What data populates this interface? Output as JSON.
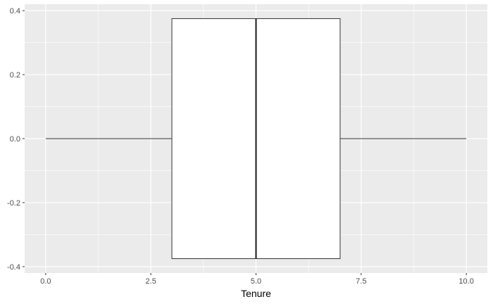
{
  "chart_data": {
    "type": "boxplot",
    "xlabel": "Tenure",
    "ylabel": "",
    "xlim": [
      -0.5,
      10.5
    ],
    "ylim": [
      -0.4,
      0.4
    ],
    "x_ticks": [
      0.0,
      2.5,
      5.0,
      7.5,
      10.0
    ],
    "x_tick_labels": [
      "0.0",
      "2.5",
      "5.0",
      "7.5",
      "10.0"
    ],
    "y_ticks": [
      -0.4,
      -0.2,
      0.0,
      0.2,
      0.4
    ],
    "y_tick_labels": [
      "-0.4",
      "-0.2",
      "0.0",
      "0.2",
      "0.4"
    ],
    "grid": true,
    "orientation": "horizontal",
    "box": {
      "min": 0.0,
      "q1": 3.0,
      "median": 5.0,
      "q3": 7.0,
      "max": 10.0,
      "y_center": 0.0,
      "half_height": 0.375
    },
    "colors": {
      "panel_background": "#ebebeb",
      "grid_major": "#ffffff",
      "box_fill": "#ffffff",
      "box_stroke": "#333333"
    }
  }
}
